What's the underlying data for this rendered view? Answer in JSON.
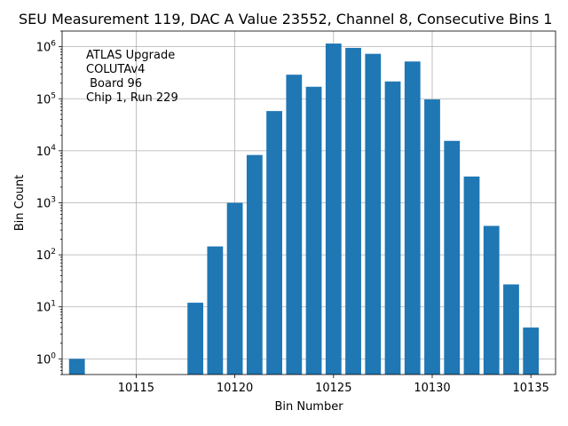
{
  "chart_data": {
    "type": "bar",
    "title": "SEU Measurement 119, DAC A Value 23552, Channel 8, Consecutive Bins 1",
    "xlabel": "Bin Number",
    "ylabel": "Bin Count",
    "yscale": "log",
    "ylim": [
      0.5,
      2000000
    ],
    "xlim": [
      10111.25,
      10136.25
    ],
    "grid": true,
    "x": [
      10112,
      10118,
      10119,
      10120,
      10121,
      10122,
      10123,
      10124,
      10125,
      10126,
      10127,
      10128,
      10129,
      10130,
      10131,
      10132,
      10133,
      10134,
      10135
    ],
    "values": [
      1,
      12,
      145,
      1000,
      8300,
      58000,
      290000,
      170000,
      1150000,
      950000,
      730000,
      215000,
      520000,
      97000,
      15500,
      3200,
      360,
      27,
      4
    ],
    "bar_width": 0.8,
    "x_ticks": [
      10115,
      10120,
      10125,
      10130,
      10135
    ],
    "x_tick_labels": [
      "10115",
      "10120",
      "10125",
      "10130",
      "10135"
    ],
    "y_ticks": [
      1,
      10,
      100,
      1000,
      10000,
      100000,
      1000000
    ],
    "y_tick_exponents": [
      "0",
      "1",
      "2",
      "3",
      "4",
      "5",
      "6"
    ],
    "y_tick_base": "10",
    "bar_color": "#1f77b4",
    "annotation_lines": [
      "ATLAS Upgrade",
      "COLUTAv4",
      " Board 96",
      "Chip 1, Run 229"
    ]
  }
}
